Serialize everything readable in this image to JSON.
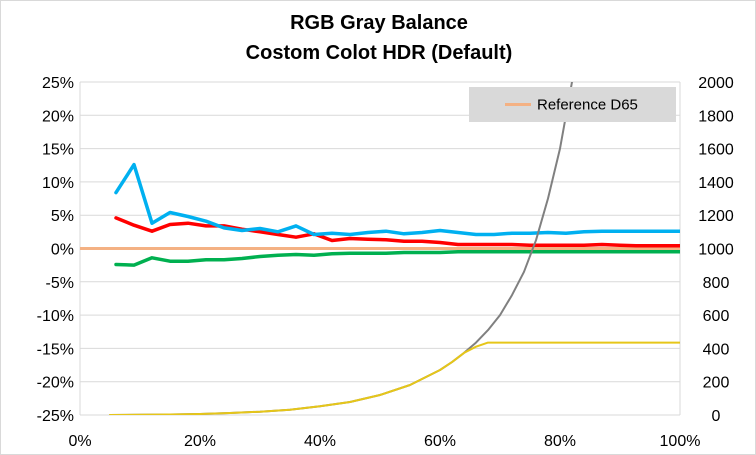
{
  "chart_data": {
    "type": "line",
    "title": [
      "RGB Gray Balance",
      "Costom Colot HDR (Default)"
    ],
    "xlabel": "",
    "ylabel": "",
    "x_axis": {
      "min": 0,
      "max": 100,
      "ticks": [
        "0%",
        "20%",
        "40%",
        "60%",
        "80%",
        "100%"
      ]
    },
    "y_axis_left": {
      "min": -25,
      "max": 25,
      "ticks": [
        "25%",
        "20%",
        "15%",
        "10%",
        "5%",
        "0%",
        "-5%",
        "-10%",
        "-15%",
        "-20%",
        "-25%"
      ]
    },
    "y_axis_right": {
      "min": 0,
      "max": 2000,
      "ticks": [
        "2000",
        "1800",
        "1600",
        "1400",
        "1200",
        "1000",
        "800",
        "600",
        "400",
        "200",
        "0"
      ]
    },
    "grid": "horizontal",
    "legend": {
      "position": "top-right",
      "entries": [
        "Reference D65"
      ]
    },
    "series": [
      {
        "name": "Reference D65",
        "axis": "left",
        "color": "#F4B183",
        "x": [
          0,
          100
        ],
        "y": [
          0,
          0
        ]
      },
      {
        "axis": "left",
        "color": "#FF0000",
        "x": [
          6,
          9,
          12,
          15,
          18,
          21,
          24,
          27,
          30,
          33,
          36,
          39,
          42,
          45,
          48,
          51,
          54,
          57,
          60,
          63,
          66,
          69,
          72,
          75,
          78,
          81,
          84,
          87,
          90,
          93,
          96,
          100
        ],
        "y": [
          4.6,
          3.5,
          2.6,
          3.6,
          3.8,
          3.4,
          3.4,
          2.9,
          2.5,
          2.1,
          1.7,
          2.2,
          1.2,
          1.5,
          1.4,
          1.3,
          1.1,
          1.1,
          0.9,
          0.6,
          0.6,
          0.6,
          0.6,
          0.5,
          0.5,
          0.5,
          0.5,
          0.6,
          0.5,
          0.4,
          0.4,
          0.4
        ]
      },
      {
        "axis": "left",
        "color": "#00B0F0",
        "x": [
          6,
          9,
          12,
          15,
          18,
          21,
          24,
          27,
          30,
          33,
          36,
          39,
          42,
          45,
          48,
          51,
          54,
          57,
          60,
          63,
          66,
          69,
          72,
          75,
          78,
          81,
          84,
          87,
          90,
          93,
          96,
          100
        ],
        "y": [
          8.4,
          12.6,
          3.8,
          5.4,
          4.8,
          4.1,
          3.1,
          2.7,
          3.0,
          2.5,
          3.4,
          2.1,
          2.3,
          2.1,
          2.4,
          2.6,
          2.2,
          2.4,
          2.7,
          2.4,
          2.1,
          2.1,
          2.3,
          2.3,
          2.4,
          2.3,
          2.5,
          2.6,
          2.6,
          2.6,
          2.6,
          2.6
        ]
      },
      {
        "axis": "left",
        "color": "#00B050",
        "x": [
          6,
          9,
          12,
          15,
          18,
          21,
          24,
          27,
          30,
          33,
          36,
          39,
          42,
          45,
          48,
          51,
          54,
          57,
          60,
          63,
          66,
          69,
          72,
          75,
          78,
          81,
          84,
          87,
          90,
          93,
          96,
          100
        ],
        "y": [
          -2.4,
          -2.5,
          -1.4,
          -1.9,
          -1.9,
          -1.7,
          -1.7,
          -1.5,
          -1.2,
          -1.0,
          -0.9,
          -1.0,
          -0.8,
          -0.7,
          -0.7,
          -0.7,
          -0.6,
          -0.6,
          -0.6,
          -0.5,
          -0.5,
          -0.5,
          -0.5,
          -0.5,
          -0.5,
          -0.5,
          -0.5,
          -0.5,
          -0.5,
          -0.5,
          -0.5,
          -0.5
        ]
      },
      {
        "axis": "right",
        "color": "#808080",
        "x": [
          5,
          10,
          15,
          20,
          25,
          30,
          35,
          40,
          45,
          50,
          55,
          60,
          62,
          64,
          66,
          68,
          70,
          72,
          74,
          76,
          78,
          80,
          82
        ],
        "y": [
          0,
          1,
          3,
          6,
          12,
          20,
          32,
          52,
          78,
          120,
          180,
          270,
          318,
          373,
          435,
          510,
          600,
          720,
          860,
          1050,
          1300,
          1600,
          2000
        ]
      },
      {
        "axis": "right",
        "color": "#E6C619",
        "x": [
          5,
          10,
          15,
          20,
          25,
          30,
          35,
          40,
          45,
          50,
          55,
          60,
          62,
          64,
          66,
          68,
          70,
          75,
          80,
          90,
          100
        ],
        "y": [
          0,
          1,
          3,
          6,
          12,
          20,
          32,
          52,
          78,
          120,
          180,
          270,
          318,
          373,
          410,
          435,
          435,
          435,
          435,
          435,
          435
        ]
      }
    ]
  }
}
